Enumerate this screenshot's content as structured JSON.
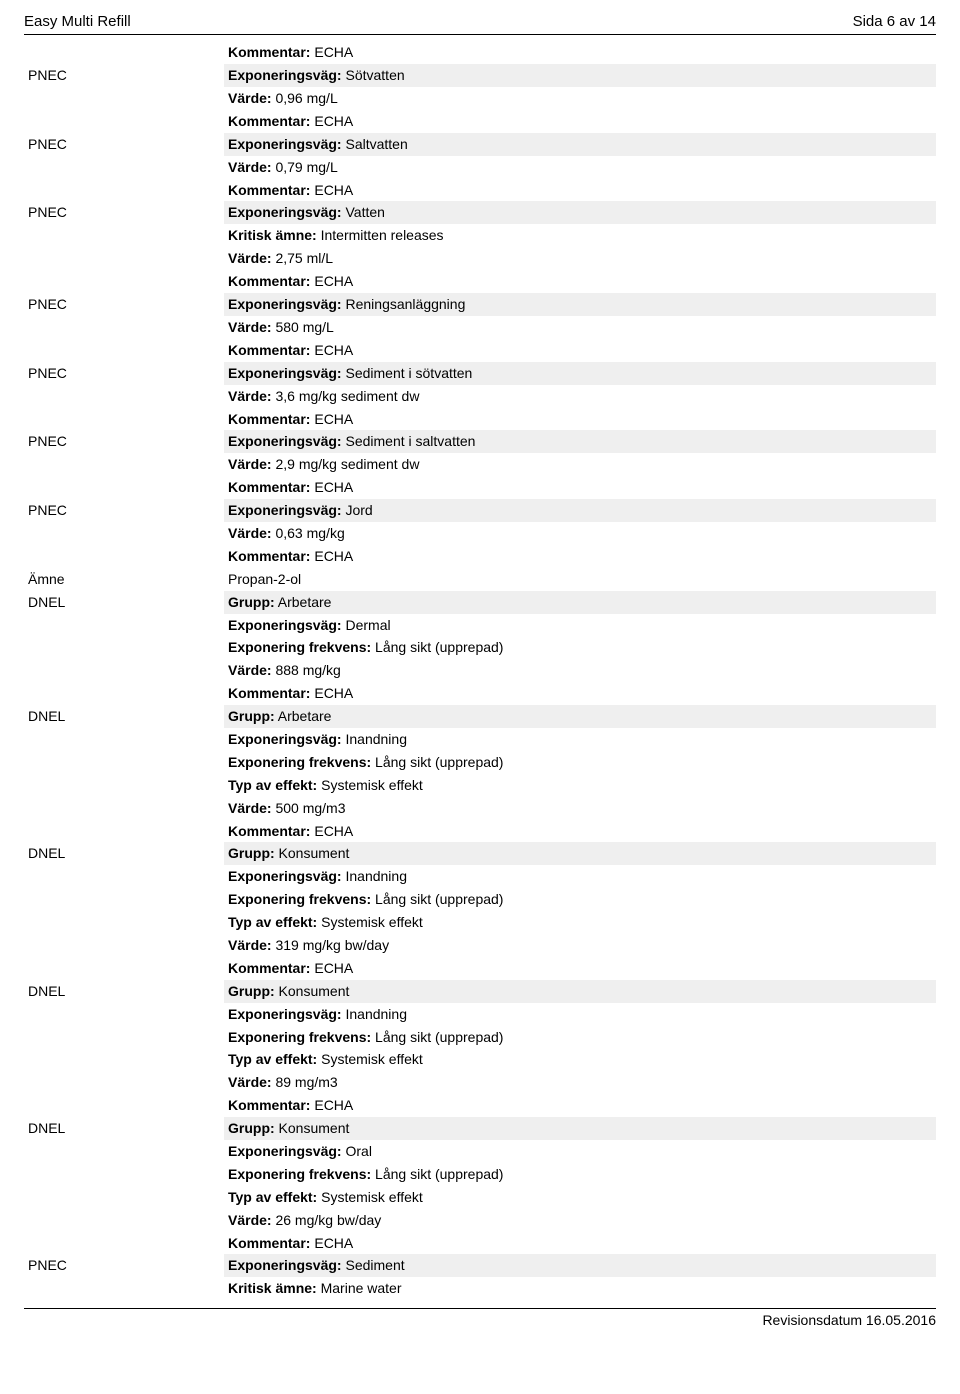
{
  "header": {
    "title": "Easy Multi Refill",
    "page": "Sida 6 av 14"
  },
  "footer": {
    "revision": "Revisionsdatum 16.05.2016"
  },
  "entries": [
    {
      "label": "",
      "firstShaded": false,
      "lines": [
        {
          "bold": "Kommentar:",
          "rest": " ECHA"
        }
      ]
    },
    {
      "label": "PNEC",
      "firstShaded": true,
      "lines": [
        {
          "bold": "Exponeringsväg:",
          "rest": " Sötvatten"
        },
        {
          "bold": "Värde:",
          "rest": " 0,96 mg/L"
        },
        {
          "bold": "Kommentar:",
          "rest": " ECHA"
        }
      ]
    },
    {
      "label": "PNEC",
      "firstShaded": true,
      "lines": [
        {
          "bold": "Exponeringsväg:",
          "rest": " Saltvatten"
        },
        {
          "bold": "Värde:",
          "rest": " 0,79 mg/L"
        },
        {
          "bold": "Kommentar:",
          "rest": " ECHA"
        }
      ]
    },
    {
      "label": "PNEC",
      "firstShaded": true,
      "lines": [
        {
          "bold": "Exponeringsväg:",
          "rest": " Vatten"
        },
        {
          "bold": "Kritisk ämne:",
          "rest": " Intermitten releases"
        },
        {
          "bold": "Värde:",
          "rest": " 2,75 ml/L"
        },
        {
          "bold": "Kommentar:",
          "rest": " ECHA"
        }
      ]
    },
    {
      "label": "PNEC",
      "firstShaded": true,
      "lines": [
        {
          "bold": "Exponeringsväg:",
          "rest": " Reningsanläggning"
        },
        {
          "bold": "Värde:",
          "rest": " 580 mg/L"
        },
        {
          "bold": "Kommentar:",
          "rest": " ECHA"
        }
      ]
    },
    {
      "label": "PNEC",
      "firstShaded": true,
      "lines": [
        {
          "bold": "Exponeringsväg:",
          "rest": " Sediment i sötvatten"
        },
        {
          "bold": "Värde:",
          "rest": " 3,6 mg/kg sediment dw"
        },
        {
          "bold": "Kommentar:",
          "rest": " ECHA"
        }
      ]
    },
    {
      "label": "PNEC",
      "firstShaded": true,
      "lines": [
        {
          "bold": "Exponeringsväg:",
          "rest": " Sediment i saltvatten"
        },
        {
          "bold": "Värde:",
          "rest": " 2,9 mg/kg sediment dw"
        },
        {
          "bold": "Kommentar:",
          "rest": " ECHA"
        }
      ]
    },
    {
      "label": "PNEC",
      "firstShaded": true,
      "lines": [
        {
          "bold": "Exponeringsväg:",
          "rest": " Jord"
        },
        {
          "bold": "Värde:",
          "rest": " 0,63 mg/kg"
        },
        {
          "bold": "Kommentar:",
          "rest": " ECHA"
        }
      ]
    },
    {
      "label": "Ämne",
      "firstShaded": false,
      "lines": [
        {
          "bold": "",
          "rest": "Propan-2-ol"
        }
      ]
    },
    {
      "label": "DNEL",
      "firstShaded": true,
      "lines": [
        {
          "bold": "Grupp:",
          "rest": " Arbetare"
        },
        {
          "bold": "Exponeringsväg:",
          "rest": " Dermal"
        },
        {
          "bold": "Exponering frekvens:",
          "rest": " Lång sikt (upprepad)"
        },
        {
          "bold": "Värde:",
          "rest": " 888 mg/kg"
        },
        {
          "bold": "Kommentar:",
          "rest": " ECHA"
        }
      ]
    },
    {
      "label": "DNEL",
      "firstShaded": true,
      "lines": [
        {
          "bold": "Grupp:",
          "rest": " Arbetare"
        },
        {
          "bold": "Exponeringsväg:",
          "rest": " Inandning"
        },
        {
          "bold": "Exponering frekvens:",
          "rest": " Lång sikt (upprepad)"
        },
        {
          "bold": "Typ av effekt:",
          "rest": " Systemisk effekt"
        },
        {
          "bold": "Värde:",
          "rest": " 500 mg/m3"
        },
        {
          "bold": "Kommentar:",
          "rest": " ECHA"
        }
      ]
    },
    {
      "label": "DNEL",
      "firstShaded": true,
      "lines": [
        {
          "bold": "Grupp:",
          "rest": " Konsument"
        },
        {
          "bold": "Exponeringsväg:",
          "rest": " Inandning"
        },
        {
          "bold": "Exponering frekvens:",
          "rest": " Lång sikt (upprepad)"
        },
        {
          "bold": "Typ av effekt:",
          "rest": " Systemisk effekt"
        },
        {
          "bold": "Värde:",
          "rest": " 319 mg/kg bw/day"
        },
        {
          "bold": "Kommentar:",
          "rest": " ECHA"
        }
      ]
    },
    {
      "label": "DNEL",
      "firstShaded": true,
      "lines": [
        {
          "bold": "Grupp:",
          "rest": " Konsument"
        },
        {
          "bold": "Exponeringsväg:",
          "rest": " Inandning"
        },
        {
          "bold": "Exponering frekvens:",
          "rest": " Lång sikt (upprepad)"
        },
        {
          "bold": "Typ av effekt:",
          "rest": " Systemisk effekt"
        },
        {
          "bold": "Värde:",
          "rest": " 89 mg/m3"
        },
        {
          "bold": "Kommentar:",
          "rest": " ECHA"
        }
      ]
    },
    {
      "label": "DNEL",
      "firstShaded": true,
      "lines": [
        {
          "bold": "Grupp:",
          "rest": " Konsument"
        },
        {
          "bold": "Exponeringsväg:",
          "rest": " Oral"
        },
        {
          "bold": "Exponering frekvens:",
          "rest": " Lång sikt (upprepad)"
        },
        {
          "bold": "Typ av effekt:",
          "rest": " Systemisk effekt"
        },
        {
          "bold": "Värde:",
          "rest": " 26 mg/kg bw/day"
        },
        {
          "bold": "Kommentar:",
          "rest": " ECHA"
        }
      ]
    },
    {
      "label": "PNEC",
      "firstShaded": true,
      "lines": [
        {
          "bold": "Exponeringsväg:",
          "rest": " Sediment"
        },
        {
          "bold": "Kritisk ämne:",
          "rest": " Marine water"
        }
      ]
    }
  ]
}
